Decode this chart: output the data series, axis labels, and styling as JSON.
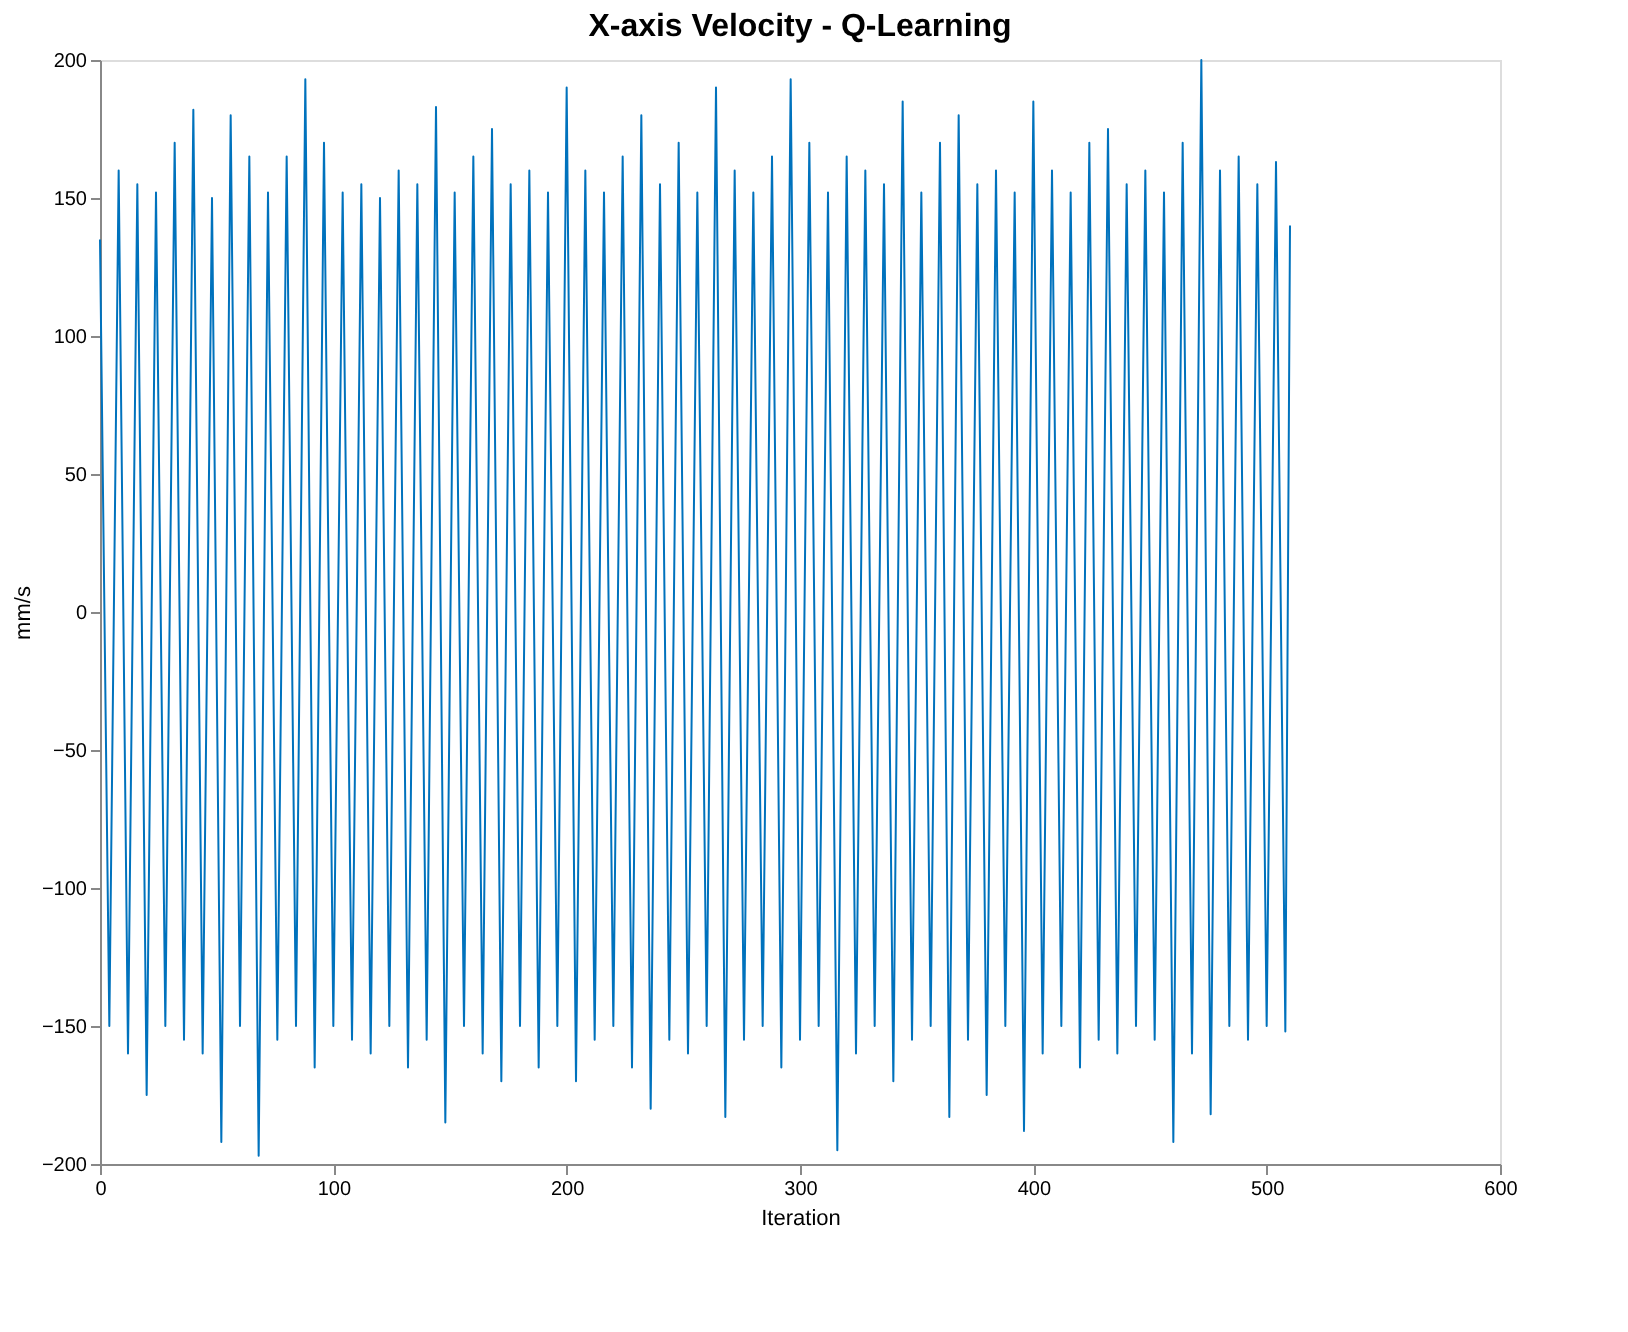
{
  "chart_data": {
    "type": "line",
    "title": "X-axis Velocity - Q-Learning",
    "xlabel": "Iteration",
    "ylabel": "mm/s",
    "xlim": [
      0,
      600
    ],
    "xticks": [
      0,
      100,
      200,
      300,
      400,
      500,
      600
    ],
    "ylim": [
      -200,
      200
    ],
    "yticks": [
      -200,
      -150,
      -100,
      -50,
      0,
      50,
      100,
      150,
      200
    ],
    "grid": false,
    "marker": "none",
    "line_style": "solid",
    "series": [
      {
        "color": "#0072bd",
        "x": [
          0,
          4,
          8,
          12,
          16,
          20,
          24,
          28,
          32,
          36,
          40,
          44,
          48,
          52,
          56,
          60,
          64,
          68,
          72,
          76,
          80,
          84,
          88,
          92,
          96,
          100,
          104,
          108,
          112,
          116,
          120,
          124,
          128,
          132,
          136,
          140,
          144,
          148,
          152,
          156,
          160,
          164,
          168,
          172,
          176,
          180,
          184,
          188,
          192,
          196,
          200,
          204,
          208,
          212,
          216,
          220,
          224,
          228,
          232,
          236,
          240,
          244,
          248,
          252,
          256,
          260,
          264,
          268,
          272,
          276,
          280,
          284,
          288,
          292,
          296,
          300,
          304,
          308,
          312,
          316,
          320,
          324,
          328,
          332,
          336,
          340,
          344,
          348,
          352,
          356,
          360,
          364,
          368,
          372,
          376,
          380,
          384,
          388,
          392,
          396,
          400,
          404,
          408,
          412,
          416,
          420,
          424,
          428,
          432,
          436,
          440,
          444,
          448,
          452,
          456,
          460,
          464,
          468,
          472,
          476,
          480,
          484,
          488,
          492,
          496,
          500,
          504,
          508,
          510
        ],
        "values": [
          135,
          -150,
          160,
          -160,
          155,
          -175,
          152,
          -150,
          170,
          -155,
          182,
          -160,
          150,
          -192,
          180,
          -150,
          165,
          -197,
          152,
          -155,
          165,
          -150,
          193,
          -165,
          170,
          -150,
          152,
          -155,
          155,
          -160,
          150,
          -150,
          160,
          -165,
          155,
          -155,
          183,
          -185,
          152,
          -150,
          165,
          -160,
          175,
          -170,
          155,
          -150,
          160,
          -165,
          152,
          -150,
          190,
          -170,
          160,
          -155,
          152,
          -150,
          165,
          -165,
          180,
          -180,
          155,
          -155,
          170,
          -160,
          152,
          -150,
          190,
          -183,
          160,
          -155,
          152,
          -150,
          165,
          -165,
          193,
          -155,
          170,
          -150,
          152,
          -195,
          165,
          -160,
          160,
          -150,
          155,
          -170,
          185,
          -155,
          152,
          -150,
          170,
          -183,
          180,
          -155,
          155,
          -175,
          160,
          -150,
          152,
          -188,
          185,
          -160,
          160,
          -150,
          152,
          -165,
          170,
          -155,
          175,
          -160,
          155,
          -150,
          160,
          -155,
          152,
          -192,
          170,
          -160,
          200,
          -182,
          160,
          -150,
          165,
          -155,
          155,
          -150,
          163,
          -152,
          140
        ]
      }
    ]
  }
}
